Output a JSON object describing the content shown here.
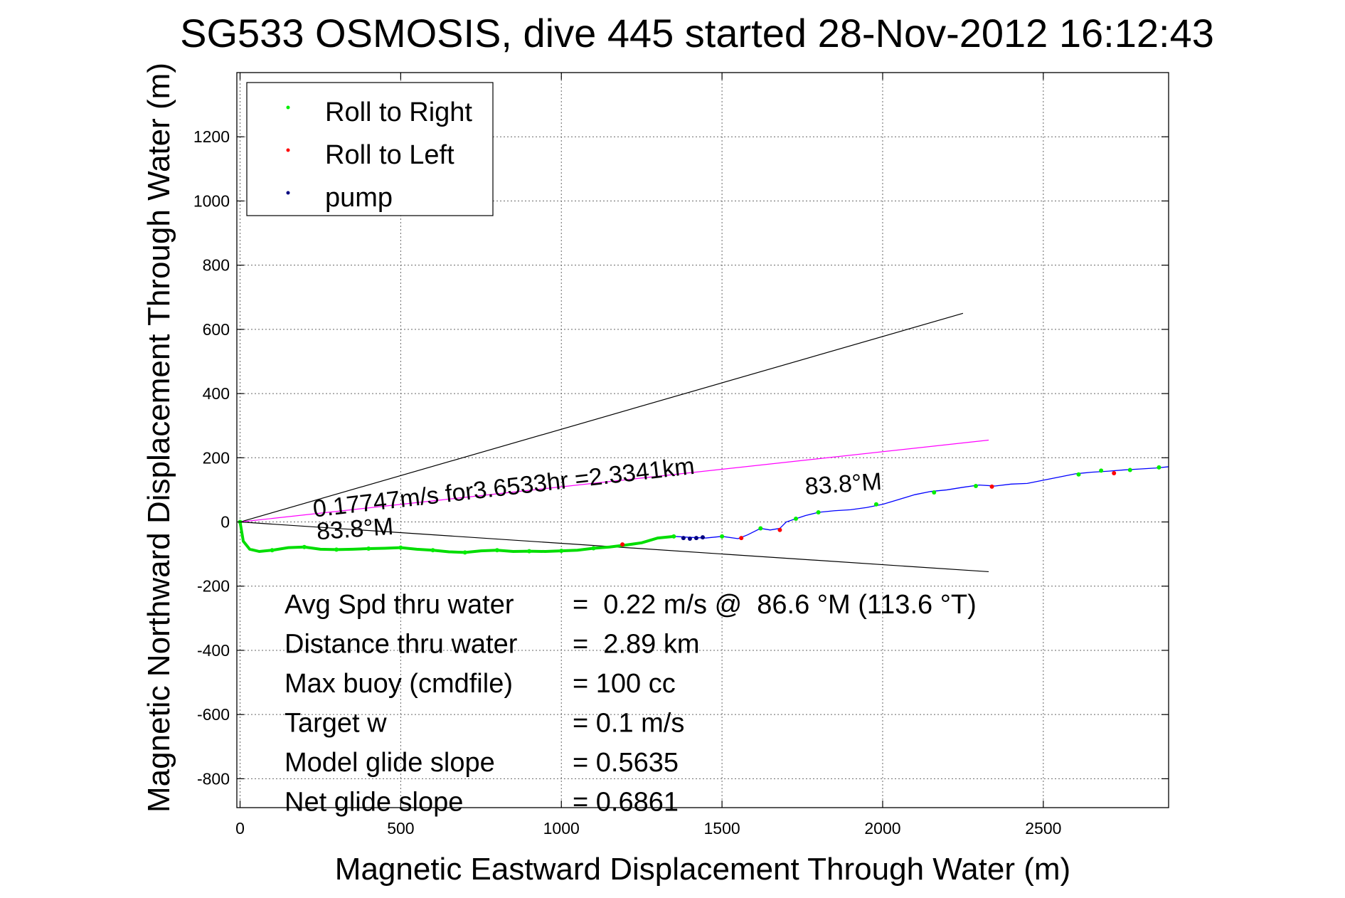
{
  "chart_data": {
    "type": "line",
    "title": "SG533 OSMOSIS, dive 445 started 28-Nov-2012 16:12:43",
    "xlabel": "Magnetic Eastward Displacement Through Water (m)",
    "ylabel": "Magnetic Northward Displacement Through Water (m)",
    "xlim": [
      -10,
      2890
    ],
    "ylim": [
      -890,
      1400
    ],
    "xticks": [
      0,
      500,
      1000,
      1500,
      2000,
      2500
    ],
    "yticks": [
      -800,
      -600,
      -400,
      -200,
      0,
      200,
      400,
      600,
      800,
      1000,
      1200
    ],
    "grid": true,
    "legend": {
      "placement": "top-left",
      "entries": [
        {
          "name": "Roll to Right",
          "color": "#00ee00"
        },
        {
          "name": "Roll to Left",
          "color": "#ff0000"
        },
        {
          "name": "pump",
          "color": "#000080"
        }
      ]
    },
    "series": [
      {
        "name": "track",
        "color": "#0000ff",
        "x": [
          0,
          10,
          30,
          60,
          100,
          150,
          200,
          250,
          300,
          350,
          400,
          450,
          500,
          550,
          600,
          650,
          700,
          750,
          800,
          850,
          900,
          950,
          1000,
          1050,
          1100,
          1150,
          1200,
          1250,
          1300,
          1350,
          1400,
          1450,
          1500,
          1550,
          1580,
          1620,
          1650,
          1680,
          1700,
          1730,
          1760,
          1800,
          1850,
          1900,
          1950,
          2000,
          2050,
          2100,
          2150,
          2200,
          2250,
          2300,
          2350,
          2400,
          2450,
          2500,
          2550,
          2600,
          2650,
          2700,
          2750,
          2800,
          2850,
          2890
        ],
        "y": [
          0,
          -60,
          -85,
          -92,
          -88,
          -80,
          -78,
          -85,
          -86,
          -85,
          -83,
          -82,
          -80,
          -85,
          -88,
          -93,
          -95,
          -90,
          -88,
          -92,
          -91,
          -92,
          -90,
          -88,
          -82,
          -78,
          -72,
          -65,
          -50,
          -45,
          -48,
          -50,
          -45,
          -52,
          -40,
          -20,
          -25,
          -20,
          0,
          10,
          20,
          30,
          35,
          38,
          45,
          55,
          70,
          85,
          95,
          100,
          108,
          115,
          112,
          118,
          120,
          130,
          140,
          150,
          155,
          158,
          162,
          165,
          168,
          172
        ]
      }
    ],
    "markers": {
      "roll_right": {
        "x": [
          0,
          100,
          200,
          300,
          400,
          500,
          600,
          700,
          800,
          900,
          1000,
          1100,
          1350,
          1500,
          1620,
          1730,
          1800,
          1980,
          2160,
          2290,
          2610,
          2680,
          2770,
          2860
        ],
        "y": [
          0,
          -88,
          -78,
          -86,
          -83,
          -80,
          -88,
          -95,
          -88,
          -91,
          -90,
          -82,
          -45,
          -45,
          -20,
          10,
          30,
          55,
          92,
          112,
          148,
          160,
          162,
          170
        ]
      },
      "roll_left": {
        "x": [
          1190,
          1560,
          1680,
          2340,
          2720
        ],
        "y": [
          -70,
          -50,
          -25,
          110,
          152
        ]
      },
      "pump": {
        "x": [
          1380,
          1400,
          1420,
          1440
        ],
        "y": [
          -50,
          -52,
          -50,
          -48
        ]
      }
    },
    "reference_lines": [
      {
        "x": [
          0,
          2250
        ],
        "y": [
          0,
          650
        ],
        "color": "#000000"
      },
      {
        "x": [
          0,
          2330
        ],
        "y": [
          0,
          -155
        ],
        "color": "#000000"
      },
      {
        "x": [
          0,
          2330
        ],
        "y": [
          0,
          255
        ],
        "color": "#ff00ff"
      }
    ],
    "annotations": [
      {
        "text": "0.17747m/s for3.6533hr =2.3341km",
        "x": 230,
        "y": 15,
        "angle": -6.5
      },
      {
        "text": "83.8°M",
        "x": 240,
        "y": -55,
        "angle": -4
      },
      {
        "text": "83.8°M",
        "x": 1760,
        "y": 85,
        "angle": -4
      }
    ],
    "stats": [
      {
        "label": "Avg Spd thru water",
        "value": "=  0.22 m/s @  86.6 °M (113.6 °T)"
      },
      {
        "label": "Distance thru water",
        "value": "=  2.89 km"
      },
      {
        "label": "Max buoy (cmdfile)",
        "value": "= 100 cc"
      },
      {
        "label": "Target w",
        "value": "= 0.1 m/s"
      },
      {
        "label": "Model glide slope",
        "value": "= 0.5635"
      },
      {
        "label": "Net glide slope",
        "value": "= 0.6861"
      }
    ]
  }
}
